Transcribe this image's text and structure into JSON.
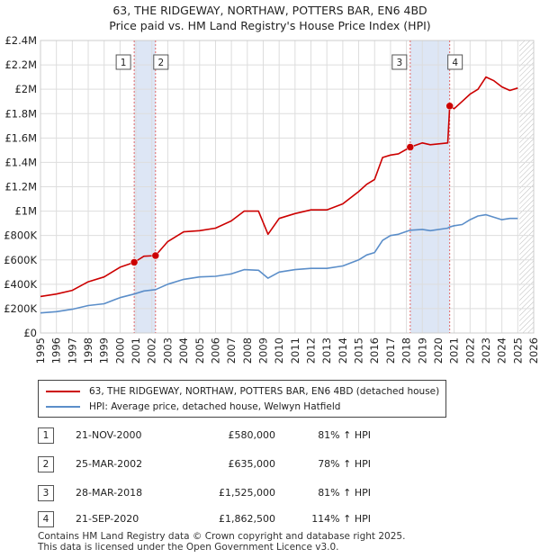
{
  "title_line1": "63, THE RIDGEWAY, NORTHAW, POTTERS BAR, EN6 4BD",
  "title_line2": "Price paid vs. HM Land Registry's House Price Index (HPI)",
  "colors": {
    "property": "#cc0000",
    "hpi": "#5b8ec9",
    "shade": "#dde6f5",
    "grid": "#dddddd"
  },
  "chart_data": {
    "type": "line",
    "xlim": [
      1995,
      2026
    ],
    "ylim": [
      0,
      2400000
    ],
    "y_ticks": [
      {
        "v": 0,
        "label": "£0"
      },
      {
        "v": 200000,
        "label": "£200K"
      },
      {
        "v": 400000,
        "label": "£400K"
      },
      {
        "v": 600000,
        "label": "£600K"
      },
      {
        "v": 800000,
        "label": "£800K"
      },
      {
        "v": 1000000,
        "label": "£1M"
      },
      {
        "v": 1200000,
        "label": "£1.2M"
      },
      {
        "v": 1400000,
        "label": "£1.4M"
      },
      {
        "v": 1600000,
        "label": "£1.6M"
      },
      {
        "v": 1800000,
        "label": "£1.8M"
      },
      {
        "v": 2000000,
        "label": "£2M"
      },
      {
        "v": 2200000,
        "label": "£2.2M"
      },
      {
        "v": 2400000,
        "label": "£2.4M"
      }
    ],
    "x_ticks": [
      "1995",
      "1996",
      "1997",
      "1998",
      "1999",
      "2000",
      "2001",
      "2002",
      "2003",
      "2004",
      "2005",
      "2006",
      "2007",
      "2008",
      "2009",
      "2010",
      "2011",
      "2012",
      "2013",
      "2014",
      "2015",
      "2016",
      "2017",
      "2018",
      "2019",
      "2020",
      "2021",
      "2022",
      "2023",
      "2024",
      "2025",
      "2026"
    ],
    "shaded_ranges": [
      [
        2000.89,
        2002.23
      ],
      [
        2018.24,
        2020.72
      ]
    ],
    "future_hatch_from": 2025.1,
    "series": [
      {
        "name": "63, THE RIDGEWAY, NORTHAW, POTTERS BAR, EN6 4BD (detached house)",
        "x": [
          1995,
          1996,
          1997,
          1998,
          1999,
          2000,
          2000.89,
          2001.5,
          2002.23,
          2003,
          2004,
          2005,
          2006,
          2007,
          2007.8,
          2008.7,
          2009.3,
          2010,
          2011,
          2012,
          2013,
          2014,
          2015,
          2015.5,
          2016,
          2016.5,
          2017,
          2017.5,
          2018.24,
          2019,
          2019.5,
          2020.6,
          2020.72,
          2021,
          2021.5,
          2022,
          2022.5,
          2023,
          2023.5,
          2024,
          2024.5,
          2025
        ],
        "values": [
          300000,
          320000,
          350000,
          420000,
          460000,
          540000,
          580000,
          630000,
          635000,
          750000,
          830000,
          840000,
          860000,
          920000,
          1000000,
          1000000,
          810000,
          940000,
          980000,
          1010000,
          1010000,
          1060000,
          1160000,
          1220000,
          1260000,
          1440000,
          1460000,
          1470000,
          1525000,
          1560000,
          1545000,
          1560000,
          1862500,
          1840000,
          1900000,
          1960000,
          2000000,
          2100000,
          2070000,
          2020000,
          1990000,
          2010000
        ]
      },
      {
        "name": "HPI: Average price, detached house, Welwyn Hatfield",
        "x": [
          1995,
          1996,
          1997,
          1998,
          1999,
          2000,
          2000.89,
          2001.5,
          2002.23,
          2003,
          2004,
          2005,
          2006,
          2007,
          2007.8,
          2008.7,
          2009.3,
          2010,
          2011,
          2012,
          2013,
          2014,
          2015,
          2015.5,
          2016,
          2016.5,
          2017,
          2017.5,
          2018.24,
          2019,
          2019.5,
          2020.6,
          2020.72,
          2021,
          2021.5,
          2022,
          2022.5,
          2023,
          2023.5,
          2024,
          2024.5,
          2025
        ],
        "values": [
          165000,
          175000,
          195000,
          225000,
          240000,
          290000,
          320000,
          345000,
          356000,
          400000,
          440000,
          460000,
          465000,
          485000,
          520000,
          515000,
          450000,
          500000,
          520000,
          530000,
          530000,
          550000,
          600000,
          640000,
          660000,
          760000,
          800000,
          810000,
          843000,
          850000,
          840000,
          860000,
          870000,
          880000,
          890000,
          930000,
          960000,
          970000,
          950000,
          930000,
          940000,
          940000
        ]
      }
    ],
    "sales": [
      {
        "n": "1",
        "x": 2000.89,
        "value": 580000
      },
      {
        "n": "2",
        "x": 2002.23,
        "value": 635000
      },
      {
        "n": "3",
        "x": 2018.24,
        "value": 1525000
      },
      {
        "n": "4",
        "x": 2020.72,
        "value": 1862500
      }
    ]
  },
  "legend": {
    "property": "63, THE RIDGEWAY, NORTHAW, POTTERS BAR, EN6 4BD (detached house)",
    "hpi": "HPI: Average price, detached house, Welwyn Hatfield"
  },
  "transactions": [
    {
      "n": "1",
      "date": "21-NOV-2000",
      "price": "£580,000",
      "hpi": "81% ↑ HPI"
    },
    {
      "n": "2",
      "date": "25-MAR-2002",
      "price": "£635,000",
      "hpi": "78% ↑ HPI"
    },
    {
      "n": "3",
      "date": "28-MAR-2018",
      "price": "£1,525,000",
      "hpi": "81% ↑ HPI"
    },
    {
      "n": "4",
      "date": "21-SEP-2020",
      "price": "£1,862,500",
      "hpi": "114% ↑ HPI"
    }
  ],
  "footer_line1": "Contains HM Land Registry data © Crown copyright and database right 2025.",
  "footer_line2": "This data is licensed under the Open Government Licence v3.0."
}
